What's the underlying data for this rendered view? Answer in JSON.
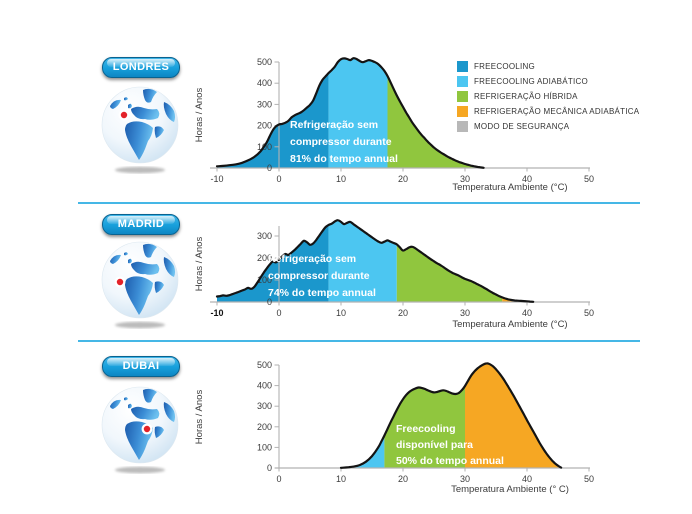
{
  "colors": {
    "freecooling": "#1b97cc",
    "freecooling_adiabatico": "#4cc6f1",
    "refrigeracao_hibrida": "#90c63e",
    "refrigeracao_mecanica_adiabatica": "#f6a723",
    "modo_de_seguranca": "#b8b8b8",
    "divider": "#45b7e6",
    "pill_top": "#41b6e8",
    "pill_bottom": "#0d86c3"
  },
  "legend": {
    "items": [
      {
        "label": "FREECOOLING",
        "color": "#1b97cc"
      },
      {
        "label": "FREECOOLING ADIABÁTICO",
        "color": "#4cc6f1"
      },
      {
        "label": "REFRIGERAÇÃO HÍBRIDA",
        "color": "#90c63e"
      },
      {
        "label": "REFRIGERAÇÃO MECÂNICA ADIABÁTICA",
        "color": "#f6a723"
      },
      {
        "label": "MODO DE SEGURANÇA",
        "color": "#b8b8b8"
      }
    ]
  },
  "chart_data": [
    {
      "type": "area",
      "city": "LONDRES",
      "ylabel": "Horas / Anos",
      "xlabel": "Temperatura Ambiente (°C)",
      "xlim": [
        -10,
        50
      ],
      "ylim": [
        0,
        500
      ],
      "x_ticks": [
        -10,
        0,
        10,
        20,
        30,
        40,
        50
      ],
      "y_ticks": [
        0,
        100,
        200,
        300,
        400,
        500
      ],
      "bold_x_ticks": [],
      "annotation": [
        "Refrigeração sem",
        "compressor durante",
        "81% do tempo annual"
      ],
      "segments": [
        {
          "from": -10,
          "to": 8,
          "mode": "freecooling",
          "color": "#1b97cc"
        },
        {
          "from": 8,
          "to": 17.5,
          "mode": "freecooling-adiabatico",
          "color": "#4cc6f1"
        },
        {
          "from": 17.5,
          "to": 33,
          "mode": "refrigeracao-hibrida",
          "color": "#90c63e"
        }
      ],
      "points": [
        [
          -10,
          8
        ],
        [
          -9,
          10
        ],
        [
          -8,
          13
        ],
        [
          -7,
          17
        ],
        [
          -6,
          24
        ],
        [
          -5,
          36
        ],
        [
          -4,
          52
        ],
        [
          -3,
          78
        ],
        [
          -2,
          120
        ],
        [
          -1.5,
          150
        ],
        [
          -1,
          178
        ],
        [
          -0.5,
          196
        ],
        [
          0,
          205
        ],
        [
          0.5,
          208
        ],
        [
          1,
          213
        ],
        [
          1.5,
          222
        ],
        [
          2,
          238
        ],
        [
          2.5,
          248
        ],
        [
          3,
          255
        ],
        [
          3.5,
          262
        ],
        [
          4,
          272
        ],
        [
          4.5,
          285
        ],
        [
          5,
          298
        ],
        [
          5.5,
          318
        ],
        [
          6,
          352
        ],
        [
          6.5,
          388
        ],
        [
          7,
          415
        ],
        [
          7.5,
          432
        ],
        [
          8,
          448
        ],
        [
          8.5,
          462
        ],
        [
          9,
          478
        ],
        [
          9.5,
          500
        ],
        [
          10,
          513
        ],
        [
          10.5,
          517
        ],
        [
          11,
          514
        ],
        [
          11.5,
          509
        ],
        [
          12,
          518
        ],
        [
          12.5,
          514
        ],
        [
          13,
          505
        ],
        [
          13.5,
          499
        ],
        [
          14,
          504
        ],
        [
          14.5,
          509
        ],
        [
          15,
          505
        ],
        [
          15.5,
          499
        ],
        [
          16,
          490
        ],
        [
          16.5,
          476
        ],
        [
          17,
          458
        ],
        [
          17.5,
          434
        ],
        [
          18,
          404
        ],
        [
          18.5,
          372
        ],
        [
          19,
          342
        ],
        [
          19.5,
          314
        ],
        [
          20,
          288
        ],
        [
          20.5,
          262
        ],
        [
          21,
          238
        ],
        [
          21.5,
          214
        ],
        [
          22,
          194
        ],
        [
          22.5,
          174
        ],
        [
          23,
          156
        ],
        [
          23.5,
          140
        ],
        [
          24,
          124
        ],
        [
          24.5,
          110
        ],
        [
          25,
          96
        ],
        [
          25.5,
          85
        ],
        [
          26,
          75
        ],
        [
          26.5,
          66
        ],
        [
          27,
          57
        ],
        [
          27.5,
          49
        ],
        [
          28,
          42
        ],
        [
          28.5,
          35
        ],
        [
          29,
          29
        ],
        [
          29.5,
          24
        ],
        [
          30,
          19
        ],
        [
          30.5,
          15
        ],
        [
          31,
          11
        ],
        [
          31.5,
          8
        ],
        [
          32,
          5
        ],
        [
          32.5,
          3
        ],
        [
          33,
          1
        ]
      ]
    },
    {
      "type": "area",
      "city": "MADRID",
      "ylabel": "Horas / Anos",
      "xlabel": "Temperatura Ambiente (°C)",
      "xlim": [
        -10,
        50
      ],
      "ylim": [
        0,
        380
      ],
      "x_ticks": [
        -10,
        0,
        10,
        20,
        30,
        40,
        50
      ],
      "y_ticks": [
        0,
        100,
        200,
        300
      ],
      "bold_x_ticks": [
        -10
      ],
      "annotation": [
        "Refrigeração sem",
        "compressor durante",
        "74% do tempo annual"
      ],
      "segments": [
        {
          "from": -10,
          "to": 8,
          "mode": "freecooling",
          "color": "#1b97cc"
        },
        {
          "from": 8,
          "to": 19,
          "mode": "freecooling-adiabatico",
          "color": "#4cc6f1"
        },
        {
          "from": 19,
          "to": 36,
          "mode": "refrigeracao-hibrida",
          "color": "#90c63e"
        },
        {
          "from": 36,
          "to": 41,
          "mode": "refrigeracao-mecanica-adiabatica",
          "color": "#f6a723"
        }
      ],
      "points": [
        [
          -10,
          25
        ],
        [
          -9.5,
          27
        ],
        [
          -9,
          30
        ],
        [
          -8.5,
          28
        ],
        [
          -8,
          31
        ],
        [
          -7.5,
          36
        ],
        [
          -7,
          41
        ],
        [
          -6.5,
          46
        ],
        [
          -6,
          52
        ],
        [
          -5.5,
          57
        ],
        [
          -5,
          64
        ],
        [
          -4.5,
          60
        ],
        [
          -4,
          68
        ],
        [
          -3.5,
          88
        ],
        [
          -3,
          110
        ],
        [
          -2.5,
          132
        ],
        [
          -2,
          152
        ],
        [
          -1.5,
          170
        ],
        [
          -1,
          184
        ],
        [
          -0.5,
          180
        ],
        [
          0,
          192
        ],
        [
          0.5,
          207
        ],
        [
          1,
          218
        ],
        [
          1.5,
          214
        ],
        [
          2,
          224
        ],
        [
          2.5,
          236
        ],
        [
          3,
          250
        ],
        [
          3.5,
          264
        ],
        [
          4,
          278
        ],
        [
          4.5,
          272
        ],
        [
          5,
          260
        ],
        [
          5.5,
          266
        ],
        [
          6,
          282
        ],
        [
          6.5,
          302
        ],
        [
          7,
          322
        ],
        [
          7.5,
          340
        ],
        [
          8,
          350
        ],
        [
          8.5,
          356
        ],
        [
          9,
          366
        ],
        [
          9.5,
          372
        ],
        [
          10,
          364
        ],
        [
          10.5,
          354
        ],
        [
          11,
          360
        ],
        [
          11.5,
          364
        ],
        [
          12,
          354
        ],
        [
          12.5,
          344
        ],
        [
          13,
          334
        ],
        [
          13.5,
          324
        ],
        [
          14,
          314
        ],
        [
          14.5,
          304
        ],
        [
          15,
          294
        ],
        [
          15.5,
          284
        ],
        [
          16,
          275
        ],
        [
          16.5,
          269
        ],
        [
          17,
          274
        ],
        [
          17.5,
          280
        ],
        [
          18,
          274
        ],
        [
          18.5,
          268
        ],
        [
          19,
          262
        ],
        [
          19.5,
          248
        ],
        [
          20,
          234
        ],
        [
          20.5,
          240
        ],
        [
          21,
          248
        ],
        [
          21.5,
          251
        ],
        [
          22,
          244
        ],
        [
          22.5,
          234
        ],
        [
          23,
          224
        ],
        [
          23.5,
          214
        ],
        [
          24,
          204
        ],
        [
          24.5,
          194
        ],
        [
          25,
          185
        ],
        [
          25.5,
          176
        ],
        [
          26,
          168
        ],
        [
          26.5,
          159
        ],
        [
          27,
          149
        ],
        [
          27.5,
          140
        ],
        [
          28,
          132
        ],
        [
          28.5,
          126
        ],
        [
          29,
          120
        ],
        [
          29.5,
          112
        ],
        [
          30,
          105
        ],
        [
          30.5,
          100
        ],
        [
          31,
          95
        ],
        [
          31.5,
          88
        ],
        [
          32,
          81
        ],
        [
          32.5,
          74
        ],
        [
          33,
          66
        ],
        [
          33.5,
          58
        ],
        [
          34,
          49
        ],
        [
          34.5,
          41
        ],
        [
          35,
          34
        ],
        [
          35.5,
          27
        ],
        [
          36,
          21
        ],
        [
          36.5,
          16
        ],
        [
          37,
          12
        ],
        [
          37.5,
          9
        ],
        [
          38,
          7
        ],
        [
          38.5,
          6
        ],
        [
          39,
          5
        ],
        [
          39.5,
          4
        ],
        [
          40,
          3
        ],
        [
          40.5,
          2
        ],
        [
          41,
          1
        ]
      ]
    },
    {
      "type": "area",
      "city": "DUBAI",
      "ylabel": "Horas / Anos",
      "xlabel": "Temperatura Ambiente (° C)",
      "xlim": [
        0,
        50
      ],
      "ylim": [
        0,
        500
      ],
      "x_ticks": [
        0,
        10,
        20,
        30,
        40,
        50
      ],
      "y_ticks": [
        0,
        100,
        200,
        300,
        400,
        500
      ],
      "bold_x_ticks": [],
      "annotation": [
        "Freecooling",
        "disponível para",
        "50% do tempo annual"
      ],
      "segments": [
        {
          "from": 10,
          "to": 17,
          "mode": "freecooling-adiabatico",
          "color": "#4cc6f1"
        },
        {
          "from": 17,
          "to": 30,
          "mode": "refrigeracao-hibrida",
          "color": "#90c63e"
        },
        {
          "from": 30,
          "to": 45.5,
          "mode": "refrigeracao-mecanica-adiabatica",
          "color": "#f6a723"
        }
      ],
      "points": [
        [
          10,
          1
        ],
        [
          11,
          3
        ],
        [
          12,
          7
        ],
        [
          13,
          14
        ],
        [
          14,
          30
        ],
        [
          15,
          58
        ],
        [
          16,
          100
        ],
        [
          16.5,
          128
        ],
        [
          17,
          158
        ],
        [
          17.5,
          190
        ],
        [
          18,
          222
        ],
        [
          18.5,
          252
        ],
        [
          19,
          282
        ],
        [
          19.5,
          310
        ],
        [
          20,
          334
        ],
        [
          20.5,
          354
        ],
        [
          21,
          369
        ],
        [
          21.5,
          379
        ],
        [
          22,
          386
        ],
        [
          22.5,
          391
        ],
        [
          23,
          389
        ],
        [
          23.5,
          384
        ],
        [
          24,
          377
        ],
        [
          24.5,
          371
        ],
        [
          25,
          367
        ],
        [
          25.5,
          369
        ],
        [
          26,
          374
        ],
        [
          26.5,
          377
        ],
        [
          27,
          374
        ],
        [
          27.5,
          367
        ],
        [
          28,
          361
        ],
        [
          28.5,
          359
        ],
        [
          29,
          364
        ],
        [
          29.5,
          378
        ],
        [
          30,
          398
        ],
        [
          30.5,
          424
        ],
        [
          31,
          449
        ],
        [
          31.5,
          468
        ],
        [
          32,
          483
        ],
        [
          32.5,
          494
        ],
        [
          33,
          503
        ],
        [
          33.5,
          508
        ],
        [
          34,
          504
        ],
        [
          34.5,
          494
        ],
        [
          35,
          479
        ],
        [
          35.5,
          461
        ],
        [
          36,
          441
        ],
        [
          36.5,
          418
        ],
        [
          37,
          393
        ],
        [
          37.5,
          368
        ],
        [
          38,
          342
        ],
        [
          38.5,
          315
        ],
        [
          39,
          288
        ],
        [
          39.5,
          260
        ],
        [
          40,
          232
        ],
        [
          40.5,
          205
        ],
        [
          41,
          178
        ],
        [
          41.5,
          151
        ],
        [
          42,
          124
        ],
        [
          42.5,
          99
        ],
        [
          43,
          76
        ],
        [
          43.5,
          56
        ],
        [
          44,
          38
        ],
        [
          44.5,
          23
        ],
        [
          45,
          11
        ],
        [
          45.5,
          2
        ]
      ]
    }
  ]
}
